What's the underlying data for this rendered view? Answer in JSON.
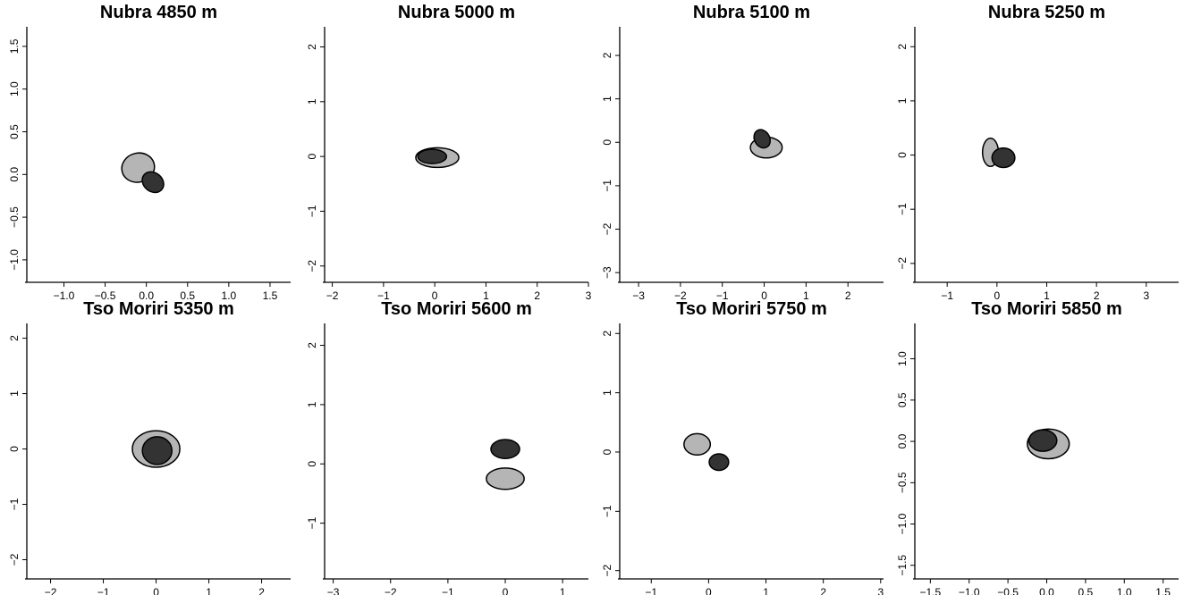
{
  "colors": {
    "light_group": "#b5b5b5",
    "dark_group": "#333333",
    "outline": "#000000"
  },
  "chart_data": [
    {
      "type": "scatter",
      "title": "Nubra 4850 m",
      "xlim": [
        -1.45,
        1.75
      ],
      "ylim": [
        -1.2,
        1.75
      ],
      "xticks": [
        "-1.0",
        "-0.5",
        "0.0",
        "0.5",
        "1.0",
        "1.5"
      ],
      "yticks": [
        "-1.0",
        "-0.5",
        "0.0",
        "0.5",
        "1.0",
        "1.5"
      ],
      "ellipses": [
        {
          "group": "light",
          "cx": -0.1,
          "cy": 0.08,
          "rx": 0.2,
          "ry": 0.17,
          "angle": -15
        },
        {
          "group": "dark",
          "cx": 0.08,
          "cy": -0.09,
          "rx": 0.14,
          "ry": 0.11,
          "angle": 40
        }
      ]
    },
    {
      "type": "scatter",
      "title": "Nubra 5000 m",
      "xlim": [
        -2.15,
        3.0
      ],
      "ylim": [
        -2.2,
        2.4
      ],
      "xticks": [
        "-2",
        "-1",
        "0",
        "1",
        "2",
        "3"
      ],
      "yticks": [
        "-2",
        "-1",
        "0",
        "1",
        "2"
      ],
      "ellipses": [
        {
          "group": "light",
          "cx": 0.05,
          "cy": -0.02,
          "rx": 0.42,
          "ry": 0.18,
          "angle": 0
        },
        {
          "group": "dark",
          "cx": -0.05,
          "cy": 0.0,
          "rx": 0.28,
          "ry": 0.13,
          "angle": 0
        }
      ]
    },
    {
      "type": "scatter",
      "title": "Nubra 5100 m",
      "xlim": [
        -3.45,
        2.85
      ],
      "ylim": [
        -3.1,
        2.7
      ],
      "xticks": [
        "-3",
        "-2",
        "-1",
        "0",
        "1",
        "2"
      ],
      "yticks": [
        "-3",
        "-2",
        "-1",
        "0",
        "1",
        "2"
      ],
      "ellipses": [
        {
          "group": "light",
          "cx": 0.05,
          "cy": -0.12,
          "rx": 0.38,
          "ry": 0.24,
          "angle": 0
        },
        {
          "group": "dark",
          "cx": -0.05,
          "cy": 0.08,
          "rx": 0.18,
          "ry": 0.22,
          "angle": -30
        }
      ]
    },
    {
      "type": "scatter",
      "title": "Nubra 5250 m",
      "xlim": [
        -1.65,
        3.65
      ],
      "ylim": [
        -2.25,
        2.4
      ],
      "xticks": [
        "-1",
        "0",
        "1",
        "2",
        "3"
      ],
      "yticks": [
        "-2",
        "-1",
        "0",
        "1",
        "2"
      ],
      "ellipses": [
        {
          "group": "light",
          "cx": -0.13,
          "cy": 0.05,
          "rx": 0.16,
          "ry": 0.26,
          "angle": 0
        },
        {
          "group": "dark",
          "cx": 0.13,
          "cy": -0.05,
          "rx": 0.23,
          "ry": 0.18,
          "angle": 0
        }
      ]
    },
    {
      "type": "scatter",
      "title": "Tso Moriri 5350 m",
      "xlim": [
        -2.45,
        2.55
      ],
      "ylim": [
        -2.25,
        2.3
      ],
      "xticks": [
        "-2",
        "-1",
        "0",
        "1",
        "2"
      ],
      "yticks": [
        "-2",
        "-1",
        "0",
        "1",
        "2"
      ],
      "ellipses": [
        {
          "group": "light",
          "cx": 0.0,
          "cy": 0.0,
          "rx": 0.45,
          "ry": 0.33,
          "angle": 0
        },
        {
          "group": "dark",
          "cx": 0.02,
          "cy": -0.03,
          "rx": 0.28,
          "ry": 0.25,
          "angle": 0
        }
      ]
    },
    {
      "type": "scatter",
      "title": "Tso Moriri 5600 m",
      "xlim": [
        -3.15,
        1.45
      ],
      "ylim": [
        -1.85,
        2.4
      ],
      "xticks": [
        "-3",
        "-2",
        "-1",
        "0",
        "1"
      ],
      "yticks": [
        "-1",
        "0",
        "1",
        "2"
      ],
      "ellipses": [
        {
          "group": "light",
          "cx": 0.0,
          "cy": -0.25,
          "rx": 0.33,
          "ry": 0.18,
          "angle": 0
        },
        {
          "group": "dark",
          "cx": 0.0,
          "cy": 0.25,
          "rx": 0.25,
          "ry": 0.16,
          "angle": 0
        }
      ]
    },
    {
      "type": "scatter",
      "title": "Tso Moriri 5750 m",
      "xlim": [
        -1.55,
        3.05
      ],
      "ylim": [
        -2.05,
        2.2
      ],
      "xticks": [
        "-1",
        "0",
        "1",
        "2",
        "3"
      ],
      "yticks": [
        "-2",
        "-1",
        "0",
        "1",
        "2"
      ],
      "ellipses": [
        {
          "group": "light",
          "cx": -0.2,
          "cy": 0.13,
          "rx": 0.23,
          "ry": 0.18,
          "angle": 0
        },
        {
          "group": "dark",
          "cx": 0.18,
          "cy": -0.17,
          "rx": 0.17,
          "ry": 0.14,
          "angle": 0
        }
      ]
    },
    {
      "type": "scatter",
      "title": "Tso Moriri 5850 m",
      "xlim": [
        -1.7,
        1.7
      ],
      "ylim": [
        -1.6,
        1.45
      ],
      "xticks": [
        "-1.5",
        "-1.0",
        "-0.5",
        "0.0",
        "0.5",
        "1.0",
        "1.5"
      ],
      "yticks": [
        "-1.5",
        "-1.0",
        "-0.5",
        "0.0",
        "0.5",
        "1.0"
      ],
      "ellipses": [
        {
          "group": "light",
          "cx": 0.02,
          "cy": -0.03,
          "rx": 0.27,
          "ry": 0.18,
          "angle": 0
        },
        {
          "group": "dark",
          "cx": -0.05,
          "cy": 0.01,
          "rx": 0.18,
          "ry": 0.13,
          "angle": 0
        }
      ]
    }
  ]
}
